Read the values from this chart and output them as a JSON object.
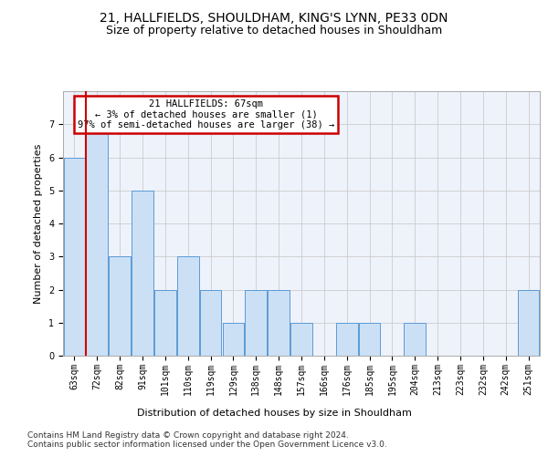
{
  "title1": "21, HALLFIELDS, SHOULDHAM, KING'S LYNN, PE33 0DN",
  "title2": "Size of property relative to detached houses in Shouldham",
  "xlabel": "Distribution of detached houses by size in Shouldham",
  "ylabel": "Number of detached properties",
  "categories": [
    "63sqm",
    "72sqm",
    "82sqm",
    "91sqm",
    "101sqm",
    "110sqm",
    "119sqm",
    "129sqm",
    "138sqm",
    "148sqm",
    "157sqm",
    "166sqm",
    "176sqm",
    "185sqm",
    "195sqm",
    "204sqm",
    "213sqm",
    "223sqm",
    "232sqm",
    "242sqm",
    "251sqm"
  ],
  "values": [
    6,
    7,
    3,
    5,
    2,
    3,
    2,
    1,
    2,
    2,
    1,
    0,
    1,
    1,
    0,
    1,
    0,
    0,
    0,
    0,
    2
  ],
  "bar_color": "#cce0f5",
  "bar_edge_color": "#5b9bd5",
  "annotation_box_text": "21 HALLFIELDS: 67sqm\n← 3% of detached houses are smaller (1)\n97% of semi-detached houses are larger (38) →",
  "annotation_box_color": "#ffffff",
  "annotation_box_edge_color": "#cc0000",
  "vline_color": "#cc0000",
  "ylim": [
    0,
    8
  ],
  "yticks": [
    0,
    1,
    2,
    3,
    4,
    5,
    6,
    7
  ],
  "grid_color": "#cccccc",
  "background_color": "#eef2fb",
  "footer1": "Contains HM Land Registry data © Crown copyright and database right 2024.",
  "footer2": "Contains public sector information licensed under the Open Government Licence v3.0.",
  "title1_fontsize": 10,
  "title2_fontsize": 9,
  "axis_label_fontsize": 8,
  "tick_fontsize": 7,
  "annotation_fontsize": 7.5,
  "footer_fontsize": 6.5
}
